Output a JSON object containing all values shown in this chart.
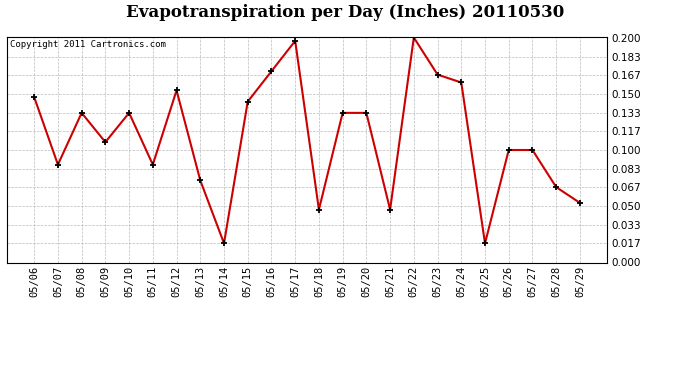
{
  "title": "Evapotranspiration per Day (Inches) 20110530",
  "copyright_text": "Copyright 2011 Cartronics.com",
  "x_labels": [
    "05/06",
    "05/07",
    "05/08",
    "05/09",
    "05/10",
    "05/11",
    "05/12",
    "05/13",
    "05/14",
    "05/15",
    "05/16",
    "05/17",
    "05/18",
    "05/19",
    "05/20",
    "05/21",
    "05/22",
    "05/23",
    "05/24",
    "05/25",
    "05/26",
    "05/27",
    "05/28",
    "05/29"
  ],
  "y_values": [
    0.147,
    0.087,
    0.133,
    0.107,
    0.133,
    0.087,
    0.153,
    0.073,
    0.017,
    0.143,
    0.17,
    0.197,
    0.047,
    0.133,
    0.133,
    0.047,
    0.2,
    0.167,
    0.16,
    0.017,
    0.1,
    0.1,
    0.067,
    0.053
  ],
  "line_color": "#cc0000",
  "marker_color": "#000000",
  "background_color": "#ffffff",
  "plot_bg_color": "#ffffff",
  "grid_color": "#bbbbbb",
  "ylim": [
    0.0,
    0.2
  ],
  "yticks": [
    0.0,
    0.017,
    0.033,
    0.05,
    0.067,
    0.083,
    0.1,
    0.117,
    0.133,
    0.15,
    0.167,
    0.183,
    0.2
  ],
  "title_fontsize": 12,
  "copyright_fontsize": 6.5,
  "tick_fontsize": 7.5
}
